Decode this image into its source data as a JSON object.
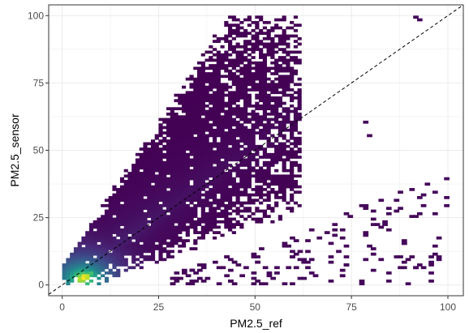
{
  "chart_data": {
    "type": "heatmap",
    "subtype": "2d-binned-scatter",
    "title": "",
    "xlabel": "PM2.5_ref",
    "ylabel": "PM2.5_sensor",
    "xlim": [
      -3.5,
      104
    ],
    "ylim": [
      -4,
      104
    ],
    "x_ticks": [
      0,
      25,
      50,
      75,
      100
    ],
    "y_ticks": [
      0,
      25,
      50,
      75,
      100
    ],
    "x_tick_labels": [
      "0",
      "25",
      "50",
      "75",
      "100"
    ],
    "y_tick_labels": [
      "0",
      "25",
      "50",
      "75",
      "100"
    ],
    "grid": true,
    "legend": "none",
    "colormap": "viridis",
    "colors": {
      "low": "#440154",
      "mid_low": "#31688e",
      "mid": "#35b779",
      "high": "#fde725",
      "reference_line": "#000000",
      "panel_border": "#333333",
      "grid": "#ebebeb"
    },
    "reference_line": {
      "type": "identity",
      "slope": 1,
      "intercept": 0,
      "style": "dashed"
    },
    "density_peak": {
      "x": 5,
      "y": 2
    }
  }
}
